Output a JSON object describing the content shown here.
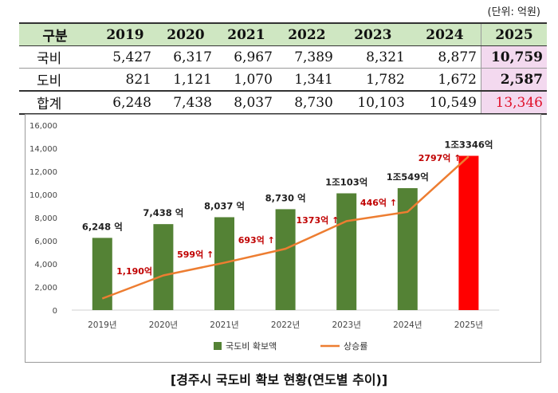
{
  "unit_label": "(단위: 억원)",
  "table": {
    "header_label": "구분",
    "years": [
      "2019",
      "2020",
      "2021",
      "2022",
      "2023",
      "2024",
      "2025"
    ],
    "rows": [
      {
        "label": "국비",
        "values": [
          "5,427",
          "6,317",
          "6,967",
          "7,389",
          "8,321",
          "8,877",
          "10,759"
        ]
      },
      {
        "label": "도비",
        "values": [
          "821",
          "1,121",
          "1,070",
          "1,341",
          "1,782",
          "1,672",
          "2,587"
        ]
      },
      {
        "label": "합계",
        "values": [
          "6,248",
          "7,438",
          "8,037",
          "8,730",
          "10,103",
          "10,549",
          "13,346"
        ]
      }
    ]
  },
  "chart_data": {
    "type": "bar",
    "categories": [
      "2019년",
      "2020년",
      "2021년",
      "2022년",
      "2023년",
      "2024년",
      "2025년"
    ],
    "y_ticks": [
      "0",
      "2,000",
      "4,000",
      "6,000",
      "8,000",
      "10,000",
      "12,000",
      "14,000",
      "16,000"
    ],
    "ylim": [
      0,
      16000
    ],
    "grid": false,
    "legend_position": "bottom",
    "series": [
      {
        "name": "국도비 확보액",
        "type": "bar",
        "color": "#548235",
        "highlight_color": "#ff0000",
        "values": [
          6248,
          7438,
          8037,
          8730,
          10103,
          10549,
          13346
        ],
        "labels": [
          "6,248 억",
          "7,438 억",
          "8,037 억",
          "8,730 억",
          "1조103억",
          "1조549억",
          "1조3346억"
        ]
      },
      {
        "name": "상승률",
        "type": "line",
        "color": "#ed7d31",
        "values": [
          1000,
          3000,
          4100,
          5300,
          7700,
          8500,
          13300
        ]
      }
    ],
    "increase_labels": [
      "1,190억",
      "599억 ↑",
      "693억 ↑",
      "1373억 ↑",
      "446억 ↑",
      "2797억 ↑"
    ],
    "increase_color": "#c00000"
  },
  "caption": "[경주시 국도비 확보 현황(연도별 추이)]"
}
